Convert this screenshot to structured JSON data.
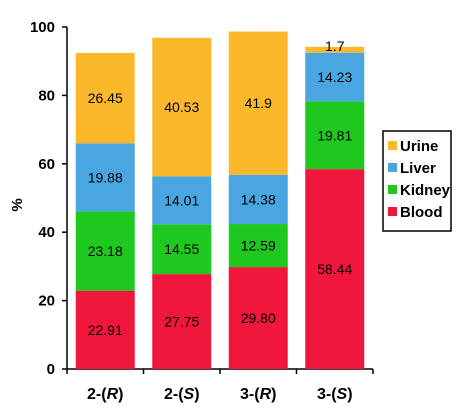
{
  "chart_data": {
    "type": "bar",
    "stacked": true,
    "ylabel": "%",
    "ylim": [
      0,
      100
    ],
    "yticks": [
      "0",
      "20",
      "40",
      "60",
      "80",
      "100"
    ],
    "grid": false,
    "legend_position": "right",
    "categories": [
      {
        "prefix": "2-(",
        "letter": "R",
        "suffix": ")"
      },
      {
        "prefix": "2-(",
        "letter": "S",
        "suffix": ")"
      },
      {
        "prefix": "3-(",
        "letter": "R",
        "suffix": ")"
      },
      {
        "prefix": "3-(",
        "letter": "S",
        "suffix": ")"
      }
    ],
    "series": [
      {
        "name": "Blood",
        "color": "#f0163c",
        "values": [
          22.91,
          27.75,
          29.8,
          58.44
        ],
        "labels": [
          "22.91",
          "27.75",
          "29.80",
          "58.44"
        ],
        "label_color": "#000000"
      },
      {
        "name": "Kidney",
        "color": "#1ec81e",
        "values": [
          23.18,
          14.55,
          12.59,
          19.81
        ],
        "labels": [
          "23.18",
          "14.55",
          "12.59",
          "19.81"
        ],
        "label_color": "#000000"
      },
      {
        "name": "Liver",
        "color": "#4aa6e0",
        "values": [
          19.88,
          14.01,
          14.38,
          14.23
        ],
        "labels": [
          "19.88",
          "14.01",
          "14.38",
          "14.23"
        ],
        "label_color": "#000000"
      },
      {
        "name": "Urine",
        "color": "#fbb82b",
        "values": [
          26.45,
          40.53,
          41.9,
          1.7
        ],
        "labels": [
          "26.45",
          "40.53",
          "41.9",
          "1.7"
        ],
        "label_color": "#000000"
      }
    ],
    "legend_order": [
      "Urine",
      "Liver",
      "Kidney",
      "Blood"
    ]
  }
}
